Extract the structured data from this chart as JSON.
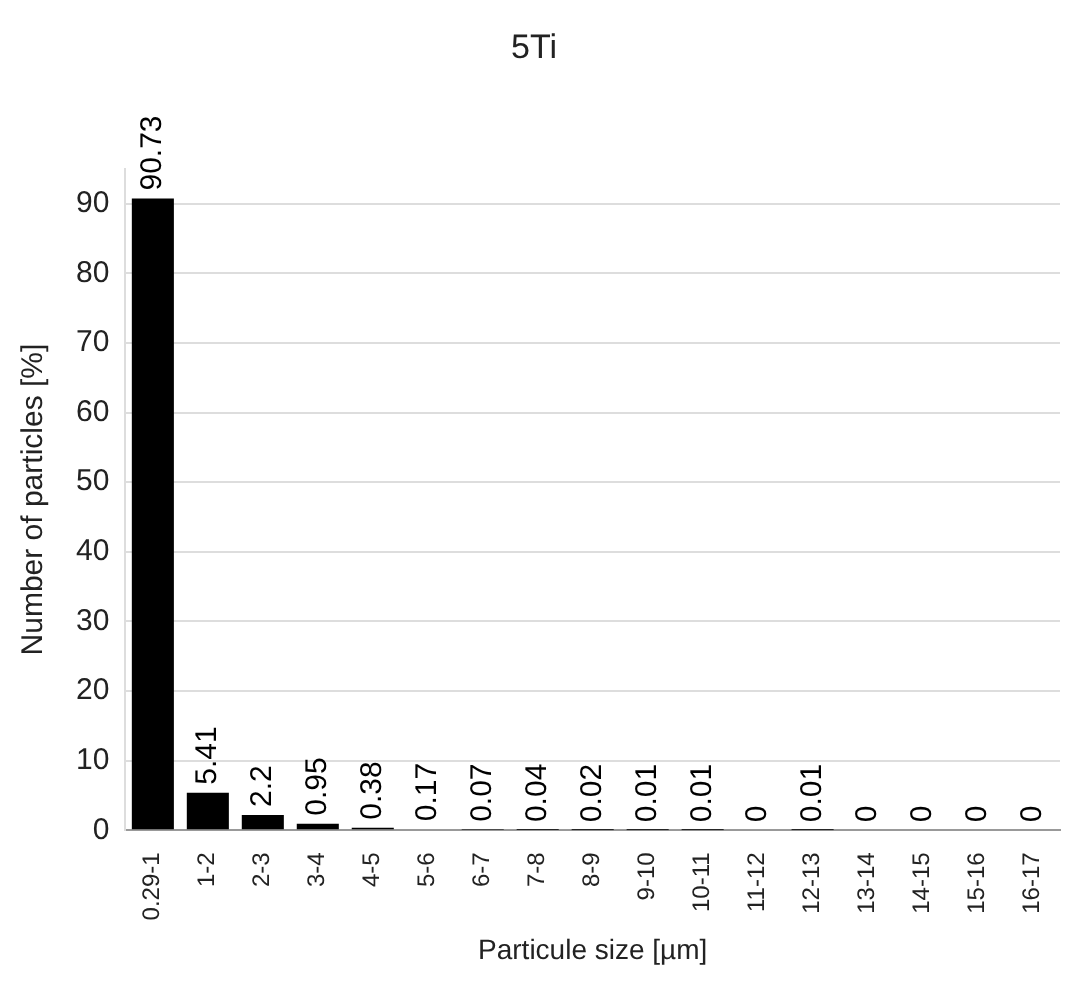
{
  "chart_data": {
    "type": "bar",
    "title": "5Ti",
    "xlabel": "Particule size [µm]",
    "ylabel": "Number of particles [%]",
    "categories": [
      "0.29-1",
      "1-2",
      "2-3",
      "3-4",
      "4-5",
      "5-6",
      "6-7",
      "7-8",
      "8-9",
      "9-10",
      "10-11",
      "11-12",
      "12-13",
      "13-14",
      "14-15",
      "15-16",
      "16-17"
    ],
    "values": [
      90.73,
      5.41,
      2.2,
      0.95,
      0.38,
      0.17,
      0.07,
      0.04,
      0.02,
      0.01,
      0.01,
      0,
      0.01,
      0,
      0,
      0,
      0
    ],
    "color": "#000000",
    "ylim": [
      0,
      95
    ],
    "yticks": [
      0,
      10,
      20,
      30,
      40,
      50,
      60,
      70,
      80,
      90
    ],
    "grid": "y",
    "data_labels": true,
    "legend": false
  }
}
